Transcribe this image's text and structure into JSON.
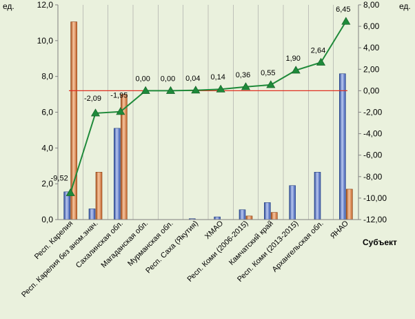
{
  "chart_data": {
    "type": "bar",
    "title": "",
    "xlabel": "Субъект",
    "ylabel_left": "ед.",
    "ylabel_right": "ед.",
    "ylim_left": [
      0,
      12
    ],
    "ylim_right": [
      -12,
      8
    ],
    "left_ticks": [
      "0,0",
      "2,0",
      "4,0",
      "6,0",
      "8,0",
      "10,0",
      "12,0"
    ],
    "right_ticks": [
      "-12,00",
      "-10,00",
      "-8,00",
      "-6,00",
      "-4,00",
      "-2,00",
      "0,00",
      "2,00",
      "4,00",
      "6,00",
      "8,00"
    ],
    "grid": "vertical",
    "legend": "none",
    "categories": [
      "Респ. Карелия",
      "Респ. Карелия без аном.знач.",
      "Сахалинская обл.",
      "Магаданская обл.",
      "Мурманская обл.",
      "Респ. Саха (Якутия)",
      "ХМАО",
      "Респ. Коми (2006-2015)",
      "Камчатский край",
      "Респ. Коми (2013-2015)",
      "Архангельская обл.",
      "ЯНАО"
    ],
    "series": [
      {
        "axis": "left",
        "kind": "bar",
        "color": "#4f6fc6",
        "values": [
          1.55,
          0.6,
          5.1,
          0.0,
          0.0,
          0.05,
          0.15,
          0.55,
          0.95,
          1.9,
          2.65,
          8.15
        ]
      },
      {
        "axis": "left",
        "kind": "bar",
        "color": "#e0874a",
        "values": [
          11.05,
          2.65,
          7.0,
          0.0,
          0.0,
          0.0,
          0.0,
          0.2,
          0.4,
          0.0,
          0.0,
          1.7
        ]
      },
      {
        "axis": "right",
        "kind": "line",
        "color": "#1f8a3a",
        "marker_color": "#1e8a3a",
        "values": [
          -9.52,
          -2.09,
          -1.95,
          0.0,
          0.0,
          0.04,
          0.14,
          0.36,
          0.55,
          1.9,
          2.64,
          6.45
        ],
        "labels": [
          "-9,52",
          "-2,09",
          "-1,95",
          "0,00",
          "0,00",
          "0,04",
          "0,14",
          "0,36",
          "0,55",
          "1,90",
          "2,64",
          "6,45"
        ]
      }
    ],
    "reference_line": {
      "axis": "right",
      "value": 0.0,
      "color": "#e03020"
    }
  }
}
